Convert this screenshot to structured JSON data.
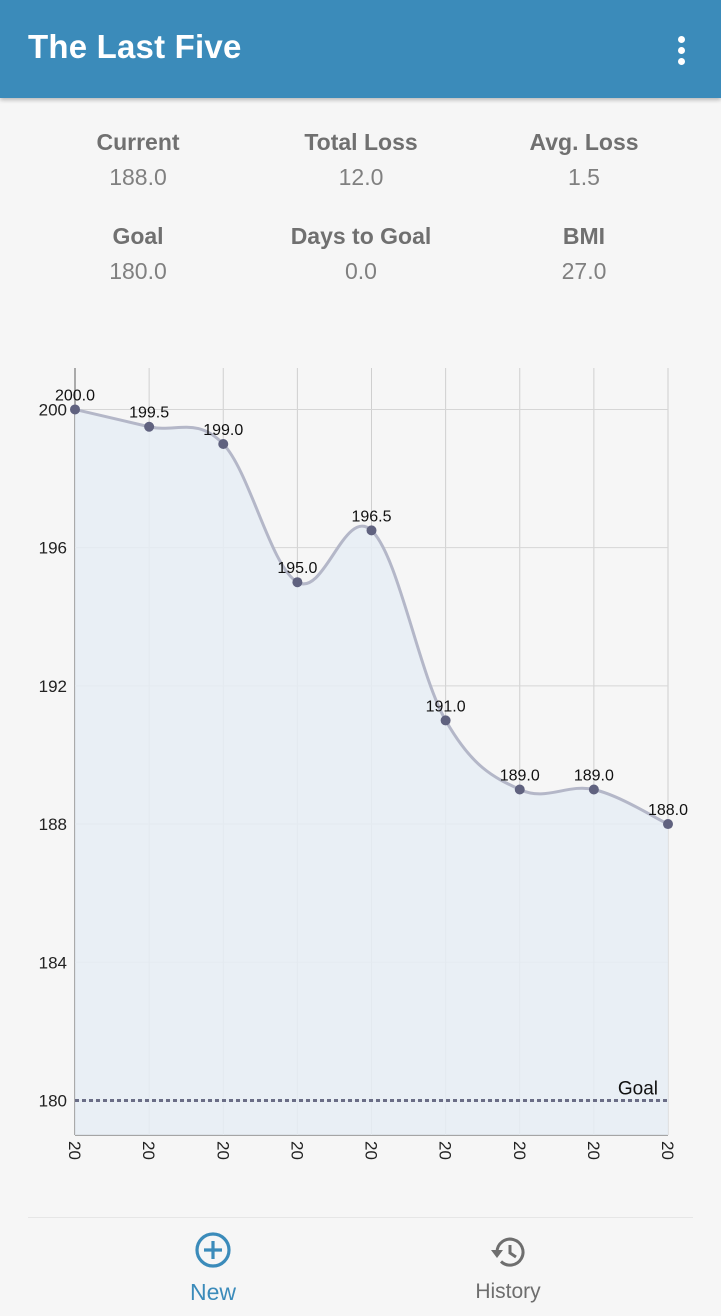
{
  "app": {
    "title": "The Last Five"
  },
  "stats": {
    "current": {
      "label": "Current",
      "value": "188.0"
    },
    "total_loss": {
      "label": "Total Loss",
      "value": "12.0"
    },
    "avg_loss": {
      "label": "Avg. Loss",
      "value": "1.5"
    },
    "goal": {
      "label": "Goal",
      "value": "180.0"
    },
    "days_to_goal": {
      "label": "Days to Goal",
      "value": "0.0"
    },
    "bmi": {
      "label": "BMI",
      "value": "27.0"
    }
  },
  "chart_data": {
    "type": "area",
    "categories": [
      "20",
      "20",
      "20",
      "20",
      "20",
      "20",
      "20",
      "20",
      "20"
    ],
    "values": [
      200.0,
      199.5,
      199.0,
      195.0,
      196.5,
      191.0,
      189.0,
      189.0,
      188.0
    ],
    "value_labels": [
      "200.0",
      "199.5",
      "199.0",
      "195.0",
      "196.5",
      "191.0",
      "189.0",
      "189.0",
      "188.0"
    ],
    "yticks": [
      180,
      184,
      188,
      192,
      196,
      200
    ],
    "ylim": [
      179,
      201.2
    ],
    "goal": {
      "value": 180,
      "label": "Goal"
    },
    "grid": true,
    "colors": {
      "line": "#b4b7c8",
      "fill": "#e6edf4",
      "point": "#60627f",
      "goal_line": "#6a6d86"
    }
  },
  "bottom_nav": {
    "new": {
      "label": "New",
      "icon": "add-circle-icon"
    },
    "history": {
      "label": "History",
      "icon": "history-icon"
    }
  },
  "colors": {
    "appbar": "#3b8bba",
    "accent": "#3b8bba",
    "background": "#f6f6f6"
  }
}
